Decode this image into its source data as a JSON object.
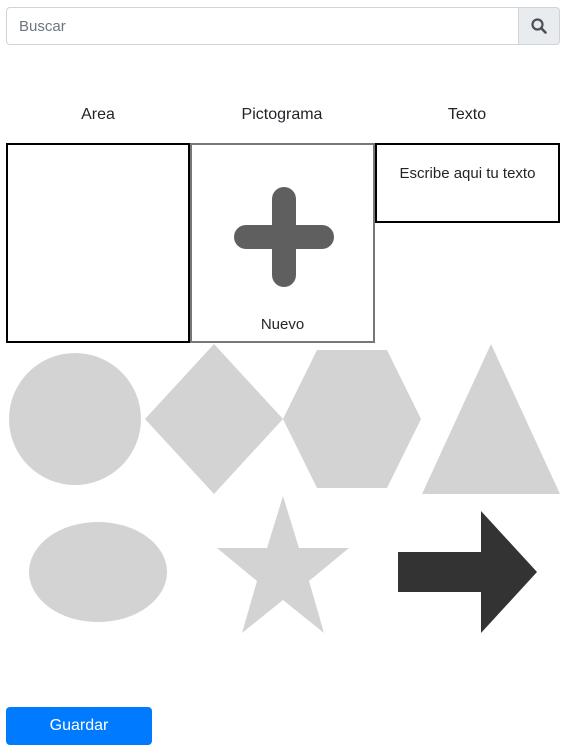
{
  "search": {
    "placeholder": "Buscar",
    "value": "",
    "icon": "search-icon"
  },
  "columns": {
    "area_label": "Area",
    "picto_label": "Pictograma",
    "text_label": "Texto"
  },
  "pictogram": {
    "label": "Nuevo",
    "icon": "plus-icon"
  },
  "text_box": {
    "placeholder_text": "Escribe aqui tu texto"
  },
  "shapes": [
    {
      "name": "circle",
      "color": "#d3d3d3"
    },
    {
      "name": "diamond",
      "color": "#d3d3d3"
    },
    {
      "name": "hexagon",
      "color": "#d3d3d3"
    },
    {
      "name": "triangle",
      "color": "#d3d3d3"
    },
    {
      "name": "ellipse",
      "color": "#d3d3d3"
    },
    {
      "name": "star",
      "color": "#d3d3d3"
    },
    {
      "name": "arrow",
      "color": "#333333"
    }
  ],
  "actions": {
    "save_label": "Guardar"
  },
  "colors": {
    "primary": "#007bff",
    "shape_gray": "#d3d3d3",
    "arrow_dark": "#333333",
    "plus_gray": "#5f5f5f"
  }
}
